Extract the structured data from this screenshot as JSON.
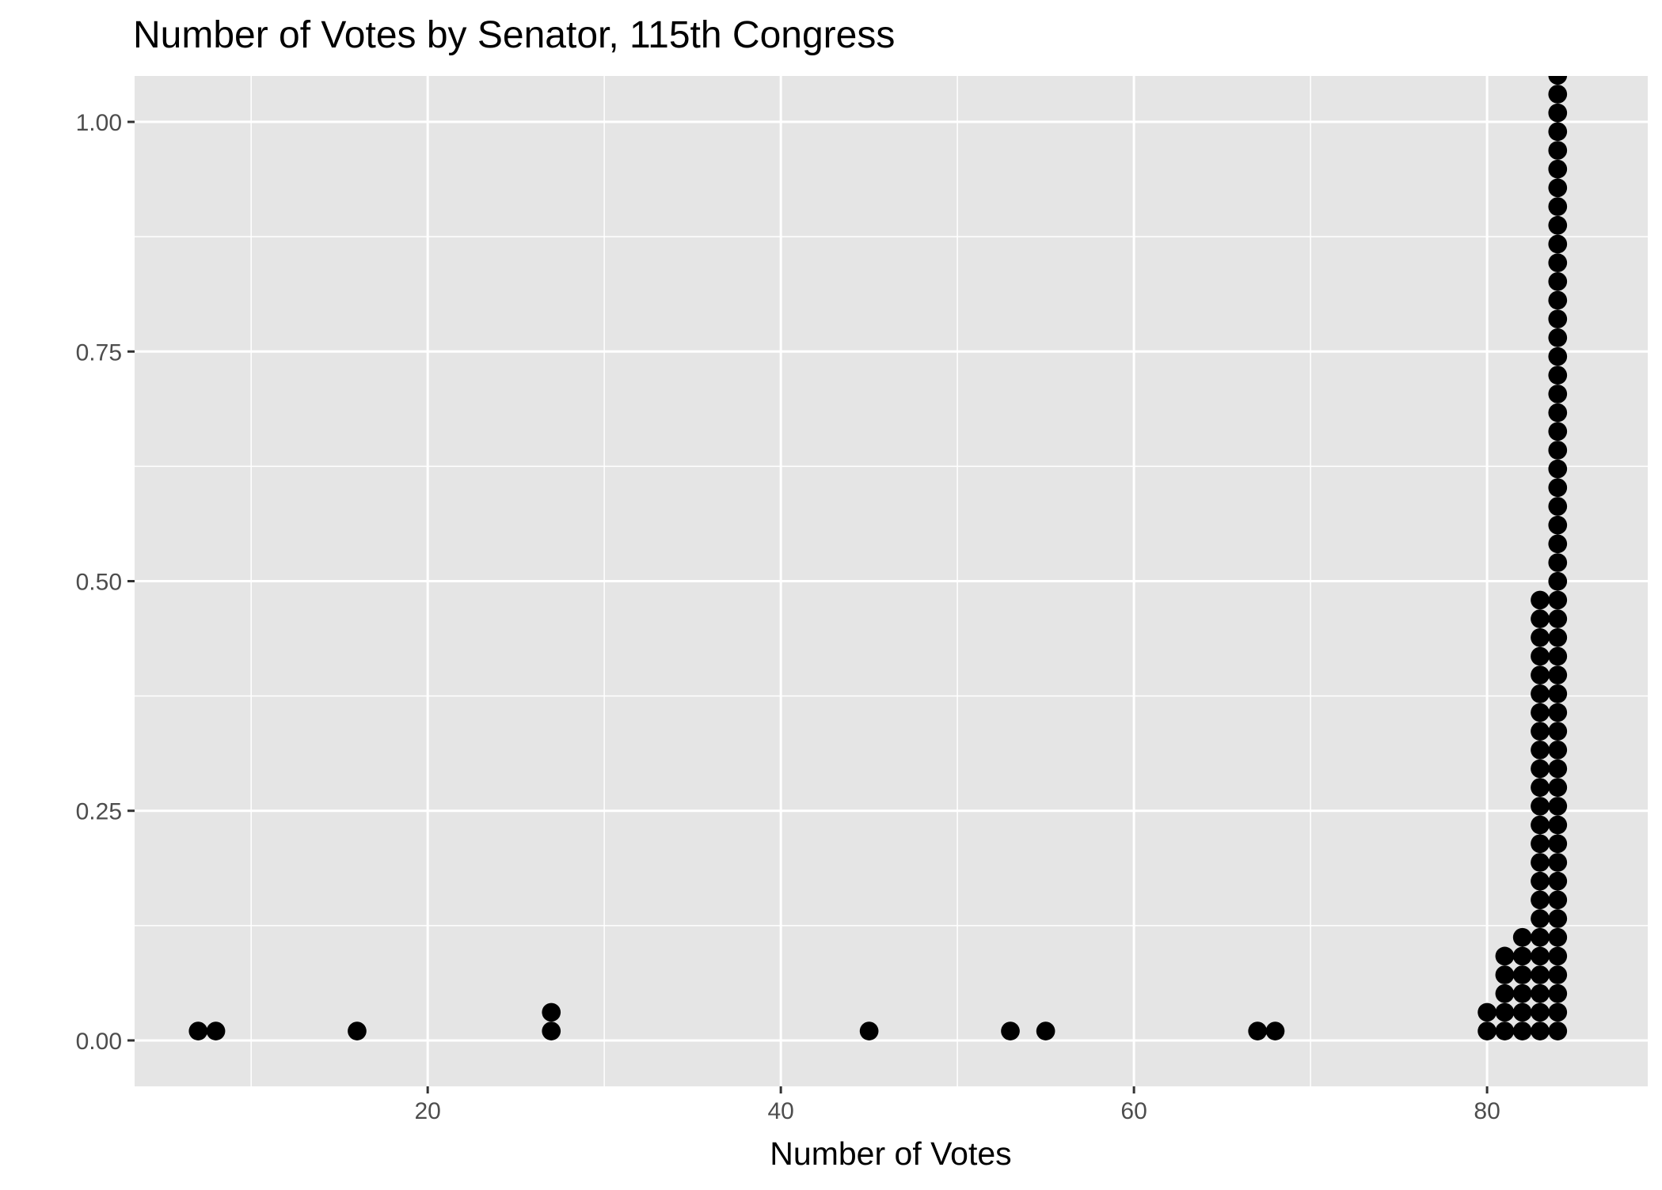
{
  "chart_data": {
    "type": "dotplot",
    "title": "Number of Votes by Senator, 115th Congress",
    "xlabel": "Number of Votes",
    "ylabel": "",
    "xlim": [
      3.4,
      89.1
    ],
    "ylim": [
      -0.05,
      1.05
    ],
    "x_ticks": [
      20,
      40,
      60,
      80
    ],
    "x_tick_labels": [
      "20",
      "40",
      "60",
      "80"
    ],
    "y_ticks": [
      0.0,
      0.25,
      0.5,
      0.75,
      1.0
    ],
    "y_tick_labels": [
      "0.00",
      "0.25",
      "0.50",
      "0.75",
      "1.00"
    ],
    "grid": true,
    "stack_step": 0.0204,
    "stacks": [
      {
        "x": 7,
        "count": 1
      },
      {
        "x": 8,
        "count": 1
      },
      {
        "x": 16,
        "count": 1
      },
      {
        "x": 27,
        "count": 2
      },
      {
        "x": 45,
        "count": 1
      },
      {
        "x": 53,
        "count": 1
      },
      {
        "x": 55,
        "count": 1
      },
      {
        "x": 67,
        "count": 1
      },
      {
        "x": 68,
        "count": 1
      },
      {
        "x": 80,
        "count": 2
      },
      {
        "x": 81,
        "count": 5
      },
      {
        "x": 82,
        "count": 6
      },
      {
        "x": 83,
        "count": 24
      },
      {
        "x": 84,
        "count": 52
      }
    ],
    "colors": {
      "panel": "#E5E5E5",
      "grid": "#FFFFFF",
      "dot": "#000000",
      "tick": "#333333"
    }
  }
}
